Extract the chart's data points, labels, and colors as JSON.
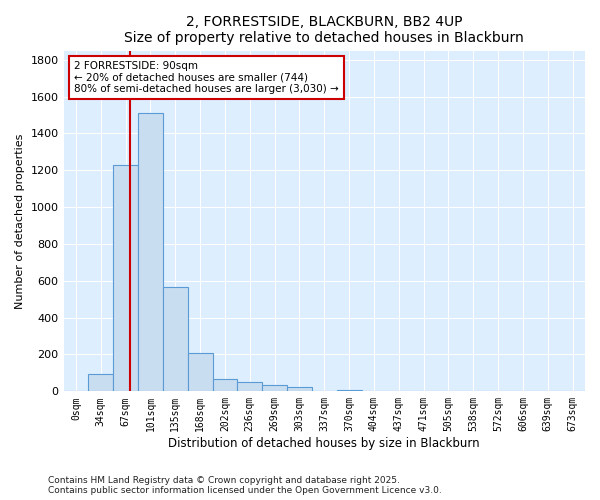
{
  "title": "2, FORRESTSIDE, BLACKBURN, BB2 4UP",
  "subtitle": "Size of property relative to detached houses in Blackburn",
  "xlabel": "Distribution of detached houses by size in Blackburn",
  "ylabel": "Number of detached properties",
  "bar_labels": [
    "0sqm",
    "34sqm",
    "67sqm",
    "101sqm",
    "135sqm",
    "168sqm",
    "202sqm",
    "236sqm",
    "269sqm",
    "303sqm",
    "337sqm",
    "370sqm",
    "404sqm",
    "437sqm",
    "471sqm",
    "505sqm",
    "538sqm",
    "572sqm",
    "606sqm",
    "639sqm",
    "673sqm"
  ],
  "bar_values": [
    0,
    95,
    1230,
    1510,
    565,
    210,
    65,
    48,
    35,
    25,
    0,
    5,
    0,
    0,
    0,
    0,
    0,
    0,
    0,
    0,
    0
  ],
  "bar_color": "#c9ddf0",
  "bar_edge_color": "#5b9bd5",
  "vline_color": "#cc0000",
  "annotation_title": "2 FORRESTSIDE: 90sqm",
  "annotation_line1": "← 20% of detached houses are smaller (744)",
  "annotation_line2": "80% of semi-detached houses are larger (3,030) →",
  "annotation_box_color": "#ffffff",
  "annotation_box_edge": "#cc0000",
  "ylim": [
    0,
    1850
  ],
  "yticks": [
    0,
    200,
    400,
    600,
    800,
    1000,
    1200,
    1400,
    1600,
    1800
  ],
  "bg_color": "#ffffff",
  "plot_bg_color": "#ddeeff",
  "grid_color": "#ffffff",
  "footer1": "Contains HM Land Registry data © Crown copyright and database right 2025.",
  "footer2": "Contains public sector information licensed under the Open Government Licence v3.0."
}
